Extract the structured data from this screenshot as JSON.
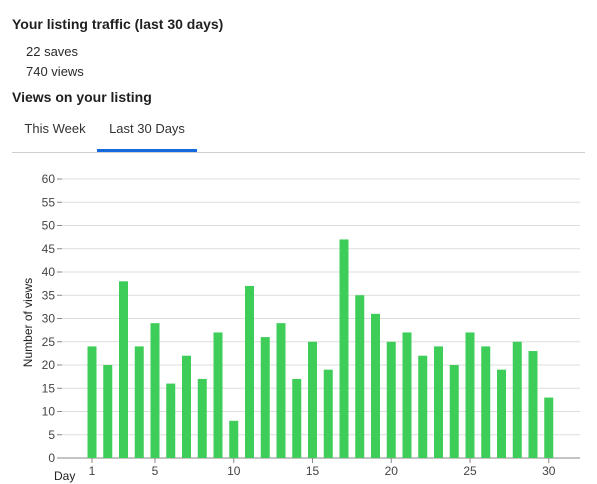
{
  "traffic": {
    "title": "Your listing traffic (last 30 days)",
    "saves": "22 saves",
    "views": "740 views"
  },
  "views_section": {
    "title": "Views on your listing",
    "tabs": [
      {
        "label": "This Week",
        "active": false
      },
      {
        "label": "Last 30 Days",
        "active": true
      }
    ]
  },
  "colors": {
    "bar": "#3dcd58",
    "active_tab_underline": "#1769e0",
    "grid": "#dddddd"
  },
  "chart_data": {
    "type": "bar",
    "xlabel": "Day",
    "ylabel": "Number of views",
    "ylim": [
      0,
      60
    ],
    "yticks": [
      0,
      5,
      10,
      15,
      20,
      25,
      30,
      35,
      40,
      45,
      50,
      55,
      60
    ],
    "xticks": [
      1,
      5,
      10,
      15,
      20,
      25,
      30
    ],
    "grid": true,
    "categories": [
      1,
      2,
      3,
      4,
      5,
      6,
      7,
      8,
      9,
      10,
      11,
      12,
      13,
      14,
      15,
      16,
      17,
      18,
      19,
      20,
      21,
      22,
      23,
      24,
      25,
      26,
      27,
      28,
      29,
      30
    ],
    "values": [
      24,
      20,
      38,
      24,
      29,
      16,
      22,
      17,
      27,
      8,
      37,
      26,
      29,
      17,
      25,
      19,
      47,
      35,
      31,
      25,
      27,
      22,
      24,
      20,
      27,
      24,
      19,
      25,
      23,
      13
    ]
  }
}
